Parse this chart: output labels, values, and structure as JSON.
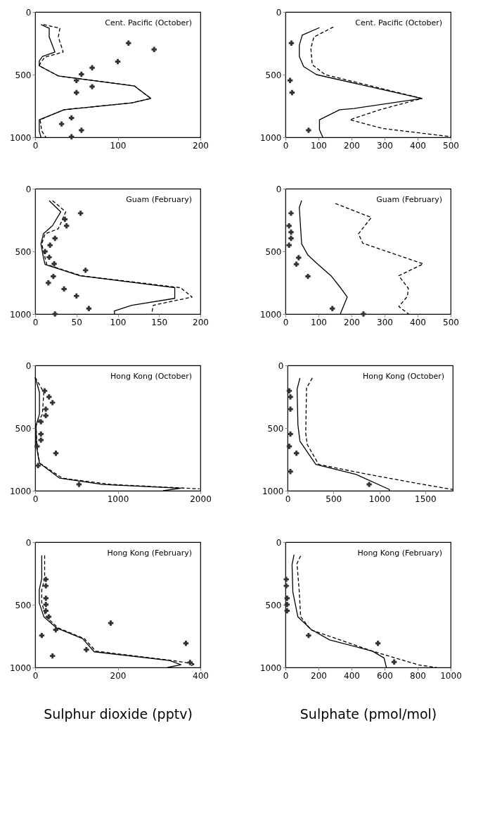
{
  "chart_data": [
    {
      "type": "line",
      "title": "Cent. Pacific (October)",
      "xlim": [
        0,
        200
      ],
      "xticks": [
        0,
        100,
        200
      ],
      "ylim": [
        1000,
        0
      ],
      "yticks": [
        0,
        500,
        1000
      ],
      "grid": false,
      "series": [
        {
          "type": "line",
          "line_style": "solid",
          "color": "#000000",
          "x": [
            7,
            17,
            17,
            24,
            9,
            5,
            5,
            28,
            120,
            140,
            117,
            35,
            5,
            5,
            7
          ],
          "values": [
            100,
            130,
            200,
            320,
            355,
            390,
            430,
            510,
            590,
            690,
            725,
            780,
            860,
            950,
            1000
          ]
        },
        {
          "type": "line",
          "line_style": "dashed",
          "color": "#000000",
          "x": [
            10,
            30,
            28,
            34,
            12,
            7,
            5,
            28,
            120,
            140,
            117,
            35,
            6,
            8,
            13
          ],
          "values": [
            100,
            130,
            200,
            320,
            360,
            400,
            430,
            510,
            590,
            690,
            725,
            780,
            860,
            950,
            1000
          ]
        },
        {
          "type": "scatter",
          "marker": "cross",
          "color": "#333333",
          "x": [
            113,
            144,
            100,
            69,
            56,
            50,
            69,
            50,
            44,
            32,
            56,
            44
          ],
          "values": [
            249,
            299,
            396,
            445,
            497,
            546,
            596,
            643,
            845,
            894,
            944,
            996
          ]
        }
      ]
    },
    {
      "type": "line",
      "title": "Cent. Pacific (October)",
      "xlim": [
        0,
        500
      ],
      "xticks": [
        0,
        100,
        200,
        300,
        400,
        500
      ],
      "ylim": [
        1000,
        0
      ],
      "yticks": [
        0,
        500,
        1000
      ],
      "grid": false,
      "series": [
        {
          "type": "line",
          "line_style": "solid",
          "color": "#000000",
          "x": [
            103,
            51,
            42,
            42,
            55,
            94,
            413,
            208,
            164,
            103,
            103,
            113
          ],
          "values": [
            125,
            185,
            265,
            355,
            435,
            500,
            690,
            770,
            780,
            860,
            940,
            1000
          ]
        },
        {
          "type": "line",
          "line_style": "dashed",
          "color": "#000000",
          "x": [
            145,
            86,
            77,
            81,
            120,
            413,
            286,
            195,
            295,
            500
          ],
          "values": [
            120,
            200,
            290,
            420,
            500,
            690,
            780,
            860,
            930,
            995
          ]
        },
        {
          "type": "scatter",
          "marker": "cross",
          "color": "#333333",
          "x": [
            18,
            14,
            20,
            70
          ],
          "values": [
            249,
            546,
            643,
            944
          ]
        }
      ]
    },
    {
      "type": "line",
      "title": "Guam (February)",
      "xlim": [
        0,
        200
      ],
      "xticks": [
        0,
        50,
        100,
        150,
        200
      ],
      "ylim": [
        1000,
        0
      ],
      "yticks": [
        0,
        500,
        1000
      ],
      "grid": false,
      "series": [
        {
          "type": "line",
          "line_style": "solid",
          "color": "#000000",
          "x": [
            17,
            31,
            21,
            10,
            7,
            10,
            12,
            54,
            169,
            169,
            117,
            96,
            96
          ],
          "values": [
            95,
            185,
            295,
            360,
            440,
            550,
            605,
            695,
            790,
            875,
            930,
            975,
            1000
          ]
        },
        {
          "type": "line",
          "line_style": "dashed",
          "color": "#000000",
          "x": [
            21,
            37,
            28,
            12,
            8,
            12,
            14,
            56,
            176,
            190,
            143,
            141
          ],
          "values": [
            95,
            185,
            320,
            360,
            440,
            550,
            605,
            695,
            790,
            865,
            930,
            1000
          ]
        },
        {
          "type": "scatter",
          "marker": "cross",
          "color": "#333333",
          "x": [
            55,
            36,
            38,
            24,
            18,
            12,
            17,
            23,
            61,
            22,
            16,
            35,
            50,
            65,
            24
          ],
          "values": [
            196,
            244,
            296,
            396,
            451,
            502,
            547,
            600,
            651,
            700,
            751,
            800,
            856,
            956,
            1000
          ]
        }
      ]
    },
    {
      "type": "line",
      "title": "Guam (February)",
      "xlim": [
        0,
        500
      ],
      "xticks": [
        0,
        100,
        200,
        300,
        400,
        500
      ],
      "ylim": [
        1000,
        0
      ],
      "yticks": [
        0,
        500,
        1000
      ],
      "grid": false,
      "series": [
        {
          "type": "line",
          "line_style": "solid",
          "color": "#000000",
          "x": [
            49,
            42,
            49,
            68,
            99,
            138,
            168,
            187,
            166
          ],
          "values": [
            95,
            150,
            440,
            530,
            605,
            695,
            795,
            865,
            1000
          ]
        },
        {
          "type": "line",
          "line_style": "dashed",
          "color": "#000000",
          "x": [
            151,
            260,
            221,
            234,
            417,
            343,
            372,
            369,
            343,
            373
          ],
          "values": [
            118,
            230,
            360,
            435,
            600,
            695,
            795,
            860,
            940,
            1000
          ]
        },
        {
          "type": "scatter",
          "marker": "cross",
          "color": "#333333",
          "x": [
            17,
            11,
            17,
            17,
            11,
            40,
            33,
            68,
            142,
            236
          ],
          "values": [
            196,
            296,
            347,
            396,
            451,
            551,
            602,
            700,
            956,
            1000
          ]
        }
      ]
    },
    {
      "type": "line",
      "title": "Hong Kong (October)",
      "xlim": [
        0,
        2000
      ],
      "xticks": [
        0,
        1000,
        2000
      ],
      "ylim": [
        1000,
        0
      ],
      "yticks": [
        0,
        500,
        1000
      ],
      "grid": false,
      "series": [
        {
          "type": "line",
          "line_style": "solid",
          "color": "#000000",
          "x": [
            0,
            52,
            52,
            10,
            17,
            52,
            297,
            820,
            1760,
            1550
          ],
          "values": [
            95,
            215,
            390,
            480,
            650,
            780,
            900,
            950,
            980,
            1000
          ]
        },
        {
          "type": "line",
          "line_style": "dashed",
          "color": "#000000",
          "x": [
            0,
            105,
            87,
            12,
            20,
            55,
            330,
            920,
            1990
          ],
          "values": [
            95,
            215,
            390,
            480,
            650,
            780,
            900,
            950,
            985
          ]
        },
        {
          "type": "scatter",
          "marker": "cross",
          "color": "#333333",
          "x": [
            115,
            168,
            210,
            129,
            129,
            70,
            70,
            70,
            24,
            251,
            35,
            531
          ],
          "values": [
            203,
            251,
            297,
            349,
            400,
            450,
            548,
            596,
            646,
            701,
            799,
            950
          ]
        }
      ]
    },
    {
      "type": "line",
      "title": "Hong Kong (October)",
      "xlim": [
        0,
        1800
      ],
      "xticks": [
        0,
        500,
        1000,
        1500
      ],
      "ylim": [
        1000,
        0
      ],
      "yticks": [
        0,
        500,
        1000
      ],
      "grid": false,
      "series": [
        {
          "type": "line",
          "line_style": "solid",
          "color": "#000000",
          "x": [
            135,
            104,
            113,
            135,
            308,
            748,
            1109,
            1109
          ],
          "values": [
            100,
            190,
            475,
            605,
            790,
            870,
            990,
            1000
          ]
        },
        {
          "type": "line",
          "line_style": "dashed",
          "color": "#000000",
          "x": [
            270,
            207,
            198,
            214,
            339,
            811,
            1439,
            1800
          ],
          "values": [
            100,
            180,
            540,
            630,
            790,
            860,
            945,
            990
          ]
        },
        {
          "type": "scatter",
          "marker": "cross",
          "color": "#333333",
          "x": [
            19,
            31,
            31,
            31,
            19,
            97,
            31,
            889
          ],
          "values": [
            203,
            251,
            349,
            548,
            646,
            701,
            847,
            950
          ]
        }
      ]
    },
    {
      "type": "line",
      "title": "Hong Kong (February)",
      "xlabel": "Sulphur dioxide (pptv)",
      "xlim": [
        0,
        400
      ],
      "xticks": [
        0,
        200,
        400
      ],
      "ylim": [
        1000,
        0
      ],
      "yticks": [
        0,
        500,
        1000
      ],
      "grid": false,
      "series": [
        {
          "type": "line",
          "line_style": "solid",
          "color": "#000000",
          "x": [
            16,
            16,
            10,
            10,
            21,
            52,
            115,
            143,
            325,
            353,
            321
          ],
          "values": [
            105,
            290,
            380,
            485,
            595,
            685,
            770,
            875,
            945,
            978,
            1000
          ]
        },
        {
          "type": "line",
          "line_style": "dashed",
          "color": "#000000",
          "x": [
            23,
            23,
            16,
            16,
            26,
            56,
            119,
            147,
            332,
            387,
            374
          ],
          "values": [
            105,
            290,
            380,
            485,
            595,
            685,
            770,
            870,
            945,
            972,
            990
          ]
        },
        {
          "type": "scatter",
          "marker": "cross",
          "color": "#333333",
          "x": [
            26,
            26,
            26,
            26,
            26,
            33,
            50,
            16,
            183,
            365,
            42,
            124,
            375
          ],
          "values": [
            297,
            349,
            448,
            498,
            548,
            596,
            699,
            745,
            646,
            808,
            908,
            858,
            961
          ]
        }
      ]
    },
    {
      "type": "line",
      "title": "Hong Kong (February)",
      "xlabel": "Sulphate (pmol/mol)",
      "xlim": [
        0,
        1000
      ],
      "xticks": [
        0,
        200,
        400,
        600,
        800,
        1000
      ],
      "ylim": [
        1000,
        0
      ],
      "yticks": [
        0,
        500,
        1000
      ],
      "grid": false,
      "series": [
        {
          "type": "line",
          "line_style": "solid",
          "color": "#000000",
          "x": [
            52,
            40,
            45,
            75,
            154,
            267,
            527,
            597,
            611
          ],
          "values": [
            100,
            180,
            400,
            595,
            695,
            780,
            870,
            925,
            1000
          ]
        },
        {
          "type": "line",
          "line_style": "dashed",
          "color": "#000000",
          "x": [
            92,
            70,
            84,
            92,
            154,
            527,
            806,
            913
          ],
          "values": [
            110,
            170,
            400,
            595,
            700,
            870,
            980,
            1000
          ]
        },
        {
          "type": "scatter",
          "marker": "cross",
          "color": "#333333",
          "x": [
            5,
            5,
            10,
            10,
            10,
            140,
            560,
            658
          ],
          "values": [
            297,
            349,
            448,
            498,
            548,
            745,
            808,
            956
          ]
        }
      ]
    }
  ]
}
